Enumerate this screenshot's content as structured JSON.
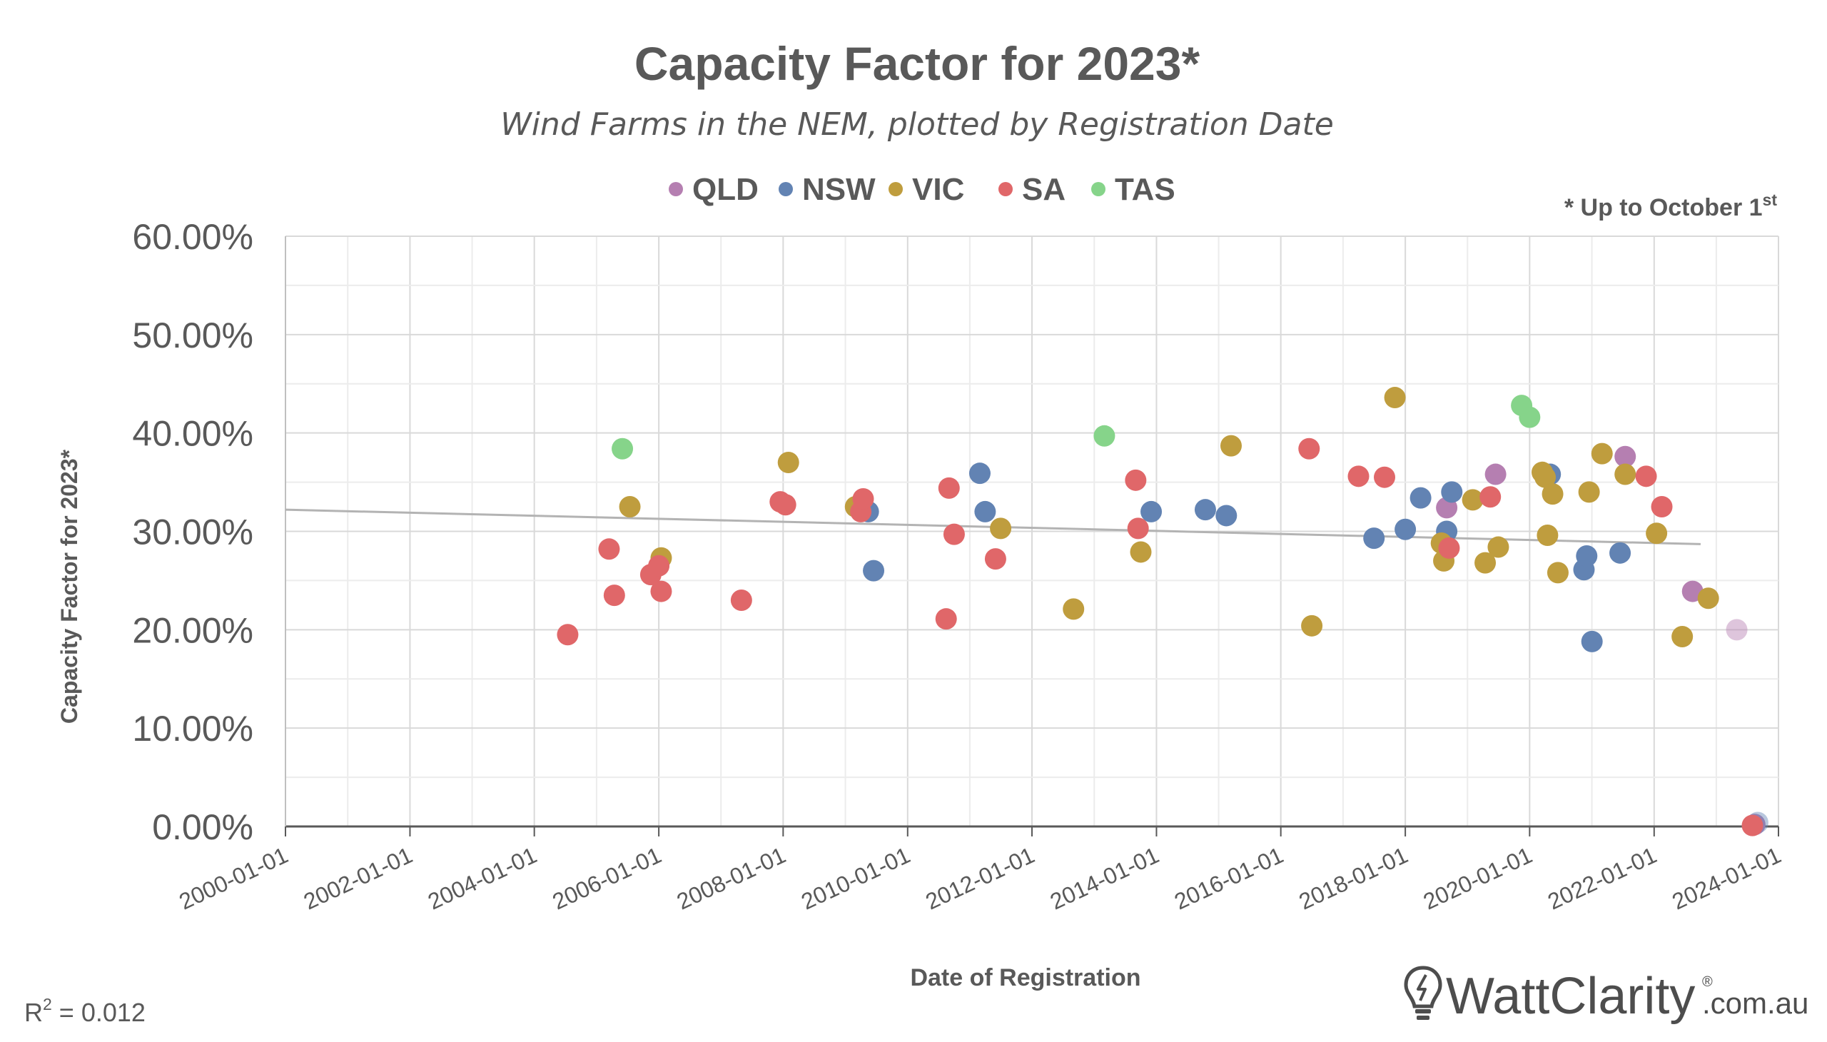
{
  "chart_data": {
    "type": "scatter",
    "title": "Capacity Factor for 2023*",
    "subtitle": "Wind Farms in the NEM, plotted by Registration Date",
    "xlabel": "Date of Registration",
    "ylabel": "Capacity Factor for 2023*",
    "note": {
      "prefix": "* Up to October 1",
      "superscript": "st"
    },
    "r_squared": {
      "label": "R",
      "exponent": "2",
      "text": " = 0.012"
    },
    "xlim": [
      "2000-01-01",
      "2024-01-01"
    ],
    "ylim": [
      0,
      60
    ],
    "x_ticks": [
      "2000-01-01",
      "2002-01-01",
      "2004-01-01",
      "2006-01-01",
      "2008-01-01",
      "2010-01-01",
      "2012-01-01",
      "2014-01-01",
      "2016-01-01",
      "2018-01-01",
      "2020-01-01",
      "2022-01-01",
      "2024-01-01"
    ],
    "y_ticks": [
      {
        "value": 0,
        "label": "0.00%"
      },
      {
        "value": 10,
        "label": "10.00%"
      },
      {
        "value": 20,
        "label": "20.00%"
      },
      {
        "value": 30,
        "label": "30.00%"
      },
      {
        "value": 40,
        "label": "40.00%"
      },
      {
        "value": 50,
        "label": "50.00%"
      },
      {
        "value": 60,
        "label": "60.00%"
      }
    ],
    "grid": true,
    "legend_position": "top-center",
    "trendline": {
      "x": [
        "2000-01-01",
        "2022-10-01"
      ],
      "y": [
        32.2,
        28.7
      ],
      "color": "#b3b3b3"
    },
    "series": [
      {
        "name": "QLD",
        "color": "#b57fb1",
        "points": [
          {
            "x": "2019-06-15",
            "y": 35.8
          },
          {
            "x": "2018-09-01",
            "y": 32.4
          },
          {
            "x": "2021-07-15",
            "y": 37.6
          },
          {
            "x": "2022-08-15",
            "y": 23.9
          },
          {
            "x": "2023-05-01",
            "y": 20.0,
            "faded": true
          },
          {
            "x": "2023-08-15",
            "y": 0.2
          }
        ]
      },
      {
        "name": "NSW",
        "color": "#6283b3",
        "points": [
          {
            "x": "2009-05-15",
            "y": 32.0
          },
          {
            "x": "2009-06-15",
            "y": 26.0
          },
          {
            "x": "2011-03-01",
            "y": 35.9
          },
          {
            "x": "2011-04-01",
            "y": 32.0
          },
          {
            "x": "2013-12-01",
            "y": 32.0
          },
          {
            "x": "2014-10-15",
            "y": 32.2
          },
          {
            "x": "2015-02-15",
            "y": 31.6
          },
          {
            "x": "2017-07-01",
            "y": 29.3
          },
          {
            "x": "2018-01-01",
            "y": 30.2
          },
          {
            "x": "2018-04-01",
            "y": 33.4
          },
          {
            "x": "2018-09-01",
            "y": 30.0
          },
          {
            "x": "2018-10-01",
            "y": 34.0
          },
          {
            "x": "2020-05-01",
            "y": 35.8
          },
          {
            "x": "2020-11-15",
            "y": 26.1
          },
          {
            "x": "2020-12-01",
            "y": 27.5
          },
          {
            "x": "2021-01-01",
            "y": 18.8
          },
          {
            "x": "2021-06-15",
            "y": 27.8
          },
          {
            "x": "2023-09-01",
            "y": 0.4,
            "faded": true
          }
        ]
      },
      {
        "name": "VIC",
        "color": "#bf9d3e",
        "points": [
          {
            "x": "2005-07-15",
            "y": 32.5
          },
          {
            "x": "2006-01-15",
            "y": 27.3
          },
          {
            "x": "2008-02-01",
            "y": 37.0
          },
          {
            "x": "2009-03-01",
            "y": 32.5
          },
          {
            "x": "2011-07-01",
            "y": 30.3
          },
          {
            "x": "2012-09-01",
            "y": 22.1
          },
          {
            "x": "2013-10-01",
            "y": 27.9
          },
          {
            "x": "2015-03-15",
            "y": 38.7
          },
          {
            "x": "2016-07-01",
            "y": 20.4
          },
          {
            "x": "2017-11-01",
            "y": 43.6
          },
          {
            "x": "2018-08-01",
            "y": 28.8
          },
          {
            "x": "2018-08-15",
            "y": 27.0
          },
          {
            "x": "2019-02-01",
            "y": 33.2
          },
          {
            "x": "2019-04-15",
            "y": 26.8
          },
          {
            "x": "2019-07-01",
            "y": 28.4
          },
          {
            "x": "2020-03-15",
            "y": 36.0
          },
          {
            "x": "2020-04-01",
            "y": 35.5
          },
          {
            "x": "2020-04-15",
            "y": 29.6
          },
          {
            "x": "2020-05-15",
            "y": 33.8
          },
          {
            "x": "2020-06-15",
            "y": 25.8
          },
          {
            "x": "2020-12-15",
            "y": 34.0
          },
          {
            "x": "2021-03-01",
            "y": 37.9
          },
          {
            "x": "2021-07-15",
            "y": 35.8
          },
          {
            "x": "2022-01-15",
            "y": 29.8
          },
          {
            "x": "2022-06-15",
            "y": 19.3
          },
          {
            "x": "2022-11-15",
            "y": 23.2
          }
        ]
      },
      {
        "name": "SA",
        "color": "#e06769",
        "points": [
          {
            "x": "2004-07-15",
            "y": 19.5
          },
          {
            "x": "2005-03-15",
            "y": 28.2
          },
          {
            "x": "2005-04-15",
            "y": 23.5
          },
          {
            "x": "2005-11-15",
            "y": 25.6
          },
          {
            "x": "2006-01-01",
            "y": 26.5
          },
          {
            "x": "2006-01-15",
            "y": 23.9
          },
          {
            "x": "2007-05-01",
            "y": 23.0
          },
          {
            "x": "2007-12-15",
            "y": 33.0
          },
          {
            "x": "2008-01-15",
            "y": 32.7
          },
          {
            "x": "2009-04-01",
            "y": 32.0
          },
          {
            "x": "2009-04-15",
            "y": 33.3
          },
          {
            "x": "2010-08-15",
            "y": 21.1
          },
          {
            "x": "2010-09-01",
            "y": 34.4
          },
          {
            "x": "2010-10-01",
            "y": 29.7
          },
          {
            "x": "2011-06-01",
            "y": 27.2
          },
          {
            "x": "2013-09-01",
            "y": 35.2
          },
          {
            "x": "2013-09-15",
            "y": 30.3
          },
          {
            "x": "2016-06-15",
            "y": 38.4
          },
          {
            "x": "2017-04-01",
            "y": 35.6
          },
          {
            "x": "2017-09-01",
            "y": 35.5
          },
          {
            "x": "2018-09-15",
            "y": 28.3
          },
          {
            "x": "2019-05-15",
            "y": 33.5
          },
          {
            "x": "2021-11-15",
            "y": 35.6
          },
          {
            "x": "2022-02-15",
            "y": 32.5
          },
          {
            "x": "2023-08-01",
            "y": 0.1
          }
        ]
      },
      {
        "name": "TAS",
        "color": "#86d48a",
        "points": [
          {
            "x": "2005-06-01",
            "y": 38.4
          },
          {
            "x": "2013-03-01",
            "y": 39.7
          },
          {
            "x": "2019-11-15",
            "y": 42.8
          },
          {
            "x": "2020-01-01",
            "y": 41.6
          }
        ]
      }
    ]
  },
  "brand": {
    "name": "WattClarity",
    "registered": "®",
    "suffix": ".com.au"
  }
}
